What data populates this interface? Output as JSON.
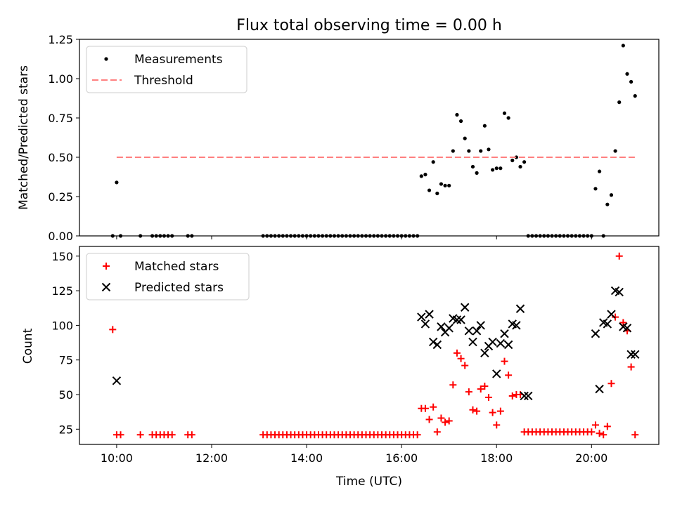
{
  "chart_data": {
    "title": "Flux total observing time = 0.00 h",
    "xlabel": "Time (UTC)",
    "x_ticks": [
      "10:00",
      "12:00",
      "14:00",
      "16:00",
      "18:00",
      "20:00"
    ],
    "panels": [
      {
        "type": "scatter",
        "ylabel": "Matched/Predicted stars",
        "ylim": [
          0,
          1.25
        ],
        "y_ticks": [
          "0.00",
          "0.25",
          "0.50",
          "0.75",
          "1.00",
          "1.25"
        ],
        "x_ticklabels_shown": false,
        "legend_position": "upper-left",
        "series": [
          {
            "name": "Measurements",
            "marker": "dot",
            "color": "#000000",
            "x": [
              "09:55",
              "10:00",
              "10:05",
              "10:30",
              "10:45",
              "10:50",
              "10:55",
              "11:00",
              "11:05",
              "11:10",
              "11:30",
              "11:35",
              "13:05",
              "13:10",
              "13:15",
              "13:20",
              "13:25",
              "13:30",
              "13:35",
              "13:40",
              "13:45",
              "13:50",
              "13:55",
              "14:00",
              "14:05",
              "14:10",
              "14:15",
              "14:20",
              "14:25",
              "14:30",
              "14:35",
              "14:40",
              "14:45",
              "14:50",
              "14:55",
              "15:00",
              "15:05",
              "15:10",
              "15:15",
              "15:20",
              "15:25",
              "15:30",
              "15:35",
              "15:40",
              "15:45",
              "15:50",
              "15:55",
              "16:00",
              "16:05",
              "16:10",
              "16:15",
              "16:20",
              "16:25",
              "16:30",
              "16:35",
              "16:40",
              "16:45",
              "16:50",
              "16:55",
              "17:00",
              "17:05",
              "17:10",
              "17:15",
              "17:20",
              "17:25",
              "17:30",
              "17:35",
              "17:40",
              "17:45",
              "17:50",
              "17:55",
              "18:00",
              "18:05",
              "18:10",
              "18:15",
              "18:20",
              "18:25",
              "18:30",
              "18:35",
              "18:40",
              "18:45",
              "18:50",
              "18:55",
              "19:00",
              "19:05",
              "19:10",
              "19:15",
              "19:20",
              "19:25",
              "19:30",
              "19:35",
              "19:40",
              "19:45",
              "19:50",
              "19:55",
              "20:00",
              "20:05",
              "20:10",
              "20:15",
              "20:20",
              "20:25",
              "20:30",
              "20:35",
              "20:40",
              "20:45",
              "20:50",
              "20:55"
            ],
            "y": [
              0.0,
              0.34,
              0.0,
              0.0,
              0.0,
              0.0,
              0.0,
              0.0,
              0.0,
              0.0,
              0.0,
              0.0,
              0.0,
              0.0,
              0.0,
              0.0,
              0.0,
              0.0,
              0.0,
              0.0,
              0.0,
              0.0,
              0.0,
              0.0,
              0.0,
              0.0,
              0.0,
              0.0,
              0.0,
              0.0,
              0.0,
              0.0,
              0.0,
              0.0,
              0.0,
              0.0,
              0.0,
              0.0,
              0.0,
              0.0,
              0.0,
              0.0,
              0.0,
              0.0,
              0.0,
              0.0,
              0.0,
              0.0,
              0.0,
              0.0,
              0.0,
              0.0,
              0.38,
              0.39,
              0.29,
              0.47,
              0.27,
              0.33,
              0.32,
              0.32,
              0.54,
              0.77,
              0.73,
              0.62,
              0.54,
              0.44,
              0.4,
              0.54,
              0.7,
              0.55,
              0.42,
              0.43,
              0.43,
              0.78,
              0.75,
              0.48,
              0.5,
              0.44,
              0.47,
              0.0,
              0.0,
              0.0,
              0.0,
              0.0,
              0.0,
              0.0,
              0.0,
              0.0,
              0.0,
              0.0,
              0.0,
              0.0,
              0.0,
              0.0,
              0.0,
              0.0,
              0.3,
              0.41,
              0.0,
              0.2,
              0.26,
              0.54,
              0.85,
              1.21,
              1.03,
              0.98,
              0.89
            ]
          },
          {
            "name": "Threshold",
            "type": "line",
            "style": "dashed",
            "color": "#ff8080",
            "x": [
              "10:00",
              "20:55"
            ],
            "y": [
              0.5,
              0.5
            ]
          }
        ]
      },
      {
        "type": "scatter",
        "ylabel": "Count",
        "ylim": [
          14,
          157
        ],
        "y_ticks": [
          "25",
          "50",
          "75",
          "100",
          "125",
          "150"
        ],
        "legend_position": "upper-left",
        "series": [
          {
            "name": "Matched stars",
            "marker": "plus",
            "color": "#ff0000",
            "x": [
              "09:55",
              "10:00",
              "10:05",
              "10:30",
              "10:45",
              "10:50",
              "10:55",
              "11:00",
              "11:05",
              "11:10",
              "11:30",
              "11:35",
              "13:05",
              "13:10",
              "13:15",
              "13:20",
              "13:25",
              "13:30",
              "13:35",
              "13:40",
              "13:45",
              "13:50",
              "13:55",
              "14:00",
              "14:05",
              "14:10",
              "14:15",
              "14:20",
              "14:25",
              "14:30",
              "14:35",
              "14:40",
              "14:45",
              "14:50",
              "14:55",
              "15:00",
              "15:05",
              "15:10",
              "15:15",
              "15:20",
              "15:25",
              "15:30",
              "15:35",
              "15:40",
              "15:45",
              "15:50",
              "15:55",
              "16:00",
              "16:05",
              "16:10",
              "16:15",
              "16:20",
              "16:25",
              "16:30",
              "16:35",
              "16:40",
              "16:45",
              "16:50",
              "16:55",
              "17:00",
              "17:05",
              "17:10",
              "17:15",
              "17:20",
              "17:25",
              "17:30",
              "17:35",
              "17:40",
              "17:45",
              "17:50",
              "17:55",
              "18:00",
              "18:05",
              "18:10",
              "18:15",
              "18:20",
              "18:25",
              "18:30",
              "18:35",
              "18:40",
              "18:45",
              "18:50",
              "18:55",
              "19:00",
              "19:05",
              "19:10",
              "19:15",
              "19:20",
              "19:25",
              "19:30",
              "19:35",
              "19:40",
              "19:45",
              "19:50",
              "19:55",
              "20:00",
              "20:05",
              "20:10",
              "20:15",
              "20:20",
              "20:25",
              "20:30",
              "20:35",
              "20:40",
              "20:45",
              "20:50",
              "20:55"
            ],
            "y": [
              97,
              21,
              21,
              21,
              21,
              21,
              21,
              21,
              21,
              21,
              21,
              21,
              21,
              21,
              21,
              21,
              21,
              21,
              21,
              21,
              21,
              21,
              21,
              21,
              21,
              21,
              21,
              21,
              21,
              21,
              21,
              21,
              21,
              21,
              21,
              21,
              21,
              21,
              21,
              21,
              21,
              21,
              21,
              21,
              21,
              21,
              21,
              21,
              21,
              21,
              21,
              21,
              40,
              40,
              32,
              41,
              23,
              33,
              30,
              31,
              57,
              80,
              76,
              71,
              52,
              39,
              38,
              54,
              56,
              48,
              37,
              28,
              38,
              74,
              64,
              49,
              50,
              50,
              23,
              23,
              23,
              23,
              23,
              23,
              23,
              23,
              23,
              23,
              23,
              23,
              23,
              23,
              23,
              23,
              23,
              23,
              28,
              22,
              21,
              27,
              58,
              106,
              150,
              102,
              96,
              70,
              21
            ]
          },
          {
            "name": "Predicted stars",
            "marker": "x",
            "color": "#000000",
            "x": [
              "10:00",
              "16:25",
              "16:30",
              "16:35",
              "16:40",
              "16:45",
              "16:50",
              "16:55",
              "17:00",
              "17:05",
              "17:10",
              "17:15",
              "17:20",
              "17:25",
              "17:30",
              "17:35",
              "17:40",
              "17:45",
              "17:50",
              "17:55",
              "18:00",
              "18:05",
              "18:10",
              "18:15",
              "18:20",
              "18:25",
              "18:30",
              "18:35",
              "18:40",
              "20:05",
              "20:10",
              "20:15",
              "20:20",
              "20:25",
              "20:30",
              "20:35",
              "20:40",
              "20:45",
              "20:50",
              "20:55"
            ],
            "y": [
              60,
              106,
              101,
              108,
              88,
              86,
              99,
              95,
              98,
              105,
              104,
              104,
              113,
              96,
              88,
              96,
              100,
              80,
              85,
              88,
              65,
              87,
              94,
              86,
              101,
              100,
              112,
              49,
              49,
              94,
              54,
              102,
              101,
              108,
              125,
              124,
              99,
              98,
              79,
              79
            ]
          }
        ]
      }
    ]
  }
}
